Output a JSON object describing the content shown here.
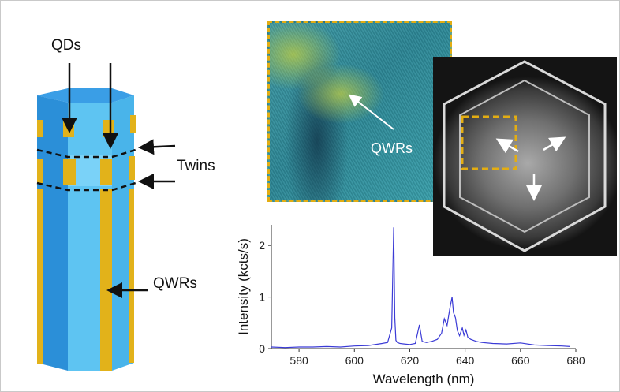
{
  "labels": {
    "qds": "QDs",
    "twins": "Twins",
    "qwrs_nanowire": "QWRs",
    "qwrs_tem": "QWRs"
  },
  "colors": {
    "nanowire_blue": "#5ec4f2",
    "nanowire_dark_blue": "#2b8fd8",
    "nanowire_gold": "#e2b21a",
    "dashed_box": "#e3ad12",
    "spectrum_line": "#3b3bd6"
  },
  "chart_data": {
    "type": "line",
    "xlabel": "Wavelength (nm)",
    "ylabel": "Intensity (kcts/s)",
    "xlim": [
      570,
      680
    ],
    "ylim": [
      0,
      2.4
    ],
    "x_ticks": [
      580,
      600,
      620,
      640,
      660,
      680
    ],
    "y_ticks": [
      0,
      1,
      2
    ],
    "grid": false,
    "series": [
      {
        "x": [
          570,
          575,
          580,
          585,
          590,
          595,
          600,
          605,
          610,
          612,
          613.5,
          614.2,
          614.6,
          615.0,
          615.5,
          616.5,
          618,
          620,
          622,
          623.5,
          624.5,
          626,
          628,
          630,
          631.5,
          632.5,
          633.5,
          634.5,
          635.3,
          635.8,
          636.5,
          637.2,
          638,
          639,
          639.6,
          640.3,
          641,
          642,
          644,
          646,
          650,
          655,
          660,
          665,
          670,
          675,
          678
        ],
        "y": [
          0.03,
          0.02,
          0.03,
          0.03,
          0.04,
          0.03,
          0.05,
          0.06,
          0.1,
          0.12,
          0.4,
          2.35,
          0.6,
          0.16,
          0.12,
          0.1,
          0.09,
          0.08,
          0.1,
          0.46,
          0.14,
          0.12,
          0.14,
          0.18,
          0.3,
          0.58,
          0.45,
          0.78,
          1.0,
          0.7,
          0.6,
          0.35,
          0.25,
          0.4,
          0.26,
          0.36,
          0.22,
          0.18,
          0.14,
          0.12,
          0.1,
          0.09,
          0.11,
          0.07,
          0.06,
          0.05,
          0.04
        ]
      }
    ]
  }
}
